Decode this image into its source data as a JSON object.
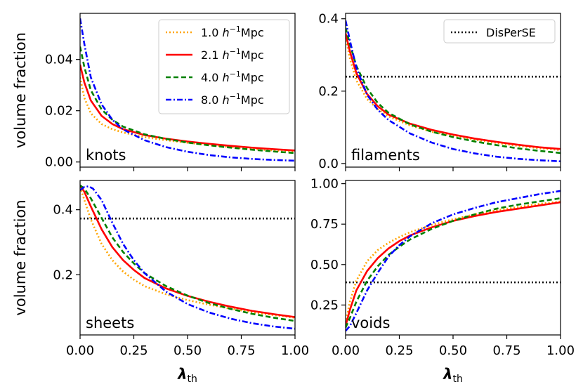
{
  "chart_data": [
    {
      "type": "line",
      "panel_label": "knots",
      "xlabel": "",
      "ylabel": "volume fraction",
      "xlim": [
        0,
        1
      ],
      "ylim": [
        -0.002,
        0.058
      ],
      "xticks": [
        0,
        0.25,
        0.5,
        0.75,
        1.0
      ],
      "xtick_labels": [],
      "yticks": [
        0,
        0.02,
        0.04
      ],
      "ytick_labels": [
        "0.00",
        "0.02",
        "0.04"
      ],
      "legend": {
        "placement": "top-right",
        "entries": [
          "1.0 h⁻¹Mpc",
          "2.1 h⁻¹Mpc",
          "4.0 h⁻¹Mpc",
          "8.0 h⁻¹Mpc"
        ]
      },
      "series": [
        {
          "name": "1.0 h⁻¹Mpc",
          "color": "#ffa500",
          "dash": "dotted",
          "x": [
            0,
            0.02,
            0.05,
            0.1,
            0.15,
            0.2,
            0.3,
            0.4,
            0.5,
            0.6,
            0.7,
            0.8,
            0.9,
            1.0
          ],
          "y": [
            0.033,
            0.025,
            0.019,
            0.0148,
            0.0128,
            0.0115,
            0.0097,
            0.0085,
            0.0075,
            0.0066,
            0.0058,
            0.0051,
            0.0045,
            0.004
          ]
        },
        {
          "name": "2.1 h⁻¹Mpc",
          "color": "#ff0000",
          "dash": "solid",
          "x": [
            0,
            0.02,
            0.05,
            0.1,
            0.15,
            0.2,
            0.3,
            0.4,
            0.5,
            0.6,
            0.7,
            0.8,
            0.9,
            1.0
          ],
          "y": [
            0.038,
            0.031,
            0.024,
            0.018,
            0.0148,
            0.0128,
            0.0105,
            0.0091,
            0.008,
            0.0071,
            0.0063,
            0.0056,
            0.005,
            0.0045
          ]
        },
        {
          "name": "4.0 h⁻¹Mpc",
          "color": "#008000",
          "dash": "dashed",
          "x": [
            0,
            0.02,
            0.05,
            0.1,
            0.15,
            0.2,
            0.3,
            0.4,
            0.5,
            0.6,
            0.7,
            0.8,
            0.9,
            1.0
          ],
          "y": [
            0.045,
            0.037,
            0.028,
            0.0205,
            0.0165,
            0.0138,
            0.0108,
            0.009,
            0.0076,
            0.0065,
            0.0056,
            0.0048,
            0.0041,
            0.0035
          ]
        },
        {
          "name": "8.0 h⁻¹Mpc",
          "color": "#0000ff",
          "dash": "dashdot",
          "x": [
            0,
            0.02,
            0.05,
            0.1,
            0.15,
            0.2,
            0.3,
            0.4,
            0.5,
            0.6,
            0.7,
            0.8,
            0.9,
            1.0
          ],
          "y": [
            0.056,
            0.046,
            0.033,
            0.0225,
            0.0165,
            0.0127,
            0.0085,
            0.0058,
            0.004,
            0.0027,
            0.0018,
            0.0012,
            0.0008,
            0.0005
          ]
        }
      ]
    },
    {
      "type": "line",
      "panel_label": "filaments",
      "xlabel": "",
      "ylabel": "",
      "xlim": [
        0,
        1
      ],
      "ylim": [
        -0.01,
        0.415
      ],
      "xticks": [
        0,
        0.25,
        0.5,
        0.75,
        1.0
      ],
      "xtick_labels": [],
      "yticks": [
        0,
        0.2,
        0.4
      ],
      "ytick_labels": [
        "0.0",
        "0.2",
        "0.4"
      ],
      "legend": {
        "placement": "top-right",
        "entries": [
          "DisPerSE"
        ]
      },
      "series": [
        {
          "name": "DisPerSE",
          "color": "#000000",
          "dash": "dotted",
          "x": [
            0,
            1
          ],
          "y": [
            0.24,
            0.24
          ]
        },
        {
          "name": "1.0 h⁻¹Mpc",
          "color": "#ffa500",
          "dash": "dotted",
          "x": [
            0,
            0.02,
            0.05,
            0.1,
            0.15,
            0.2,
            0.3,
            0.4,
            0.5,
            0.6,
            0.7,
            0.8,
            0.9,
            1.0
          ],
          "y": [
            0.35,
            0.29,
            0.23,
            0.178,
            0.15,
            0.13,
            0.105,
            0.088,
            0.076,
            0.066,
            0.057,
            0.049,
            0.042,
            0.037
          ]
        },
        {
          "name": "2.1 h⁻¹Mpc",
          "color": "#ff0000",
          "dash": "solid",
          "x": [
            0,
            0.02,
            0.05,
            0.1,
            0.15,
            0.2,
            0.3,
            0.4,
            0.5,
            0.6,
            0.7,
            0.8,
            0.9,
            1.0
          ],
          "y": [
            0.36,
            0.31,
            0.25,
            0.192,
            0.158,
            0.135,
            0.11,
            0.093,
            0.08,
            0.069,
            0.06,
            0.052,
            0.045,
            0.04
          ]
        },
        {
          "name": "4.0 h⁻¹Mpc",
          "color": "#008000",
          "dash": "dashed",
          "x": [
            0,
            0.02,
            0.05,
            0.1,
            0.15,
            0.2,
            0.3,
            0.4,
            0.5,
            0.6,
            0.7,
            0.8,
            0.9,
            1.0
          ],
          "y": [
            0.375,
            0.33,
            0.27,
            0.208,
            0.167,
            0.14,
            0.108,
            0.088,
            0.073,
            0.061,
            0.051,
            0.042,
            0.035,
            0.029
          ]
        },
        {
          "name": "8.0 h⁻¹Mpc",
          "color": "#0000ff",
          "dash": "dashdot",
          "x": [
            0,
            0.02,
            0.05,
            0.1,
            0.15,
            0.2,
            0.3,
            0.4,
            0.5,
            0.6,
            0.7,
            0.8,
            0.9,
            1.0
          ],
          "y": [
            0.395,
            0.34,
            0.265,
            0.19,
            0.148,
            0.12,
            0.083,
            0.058,
            0.04,
            0.028,
            0.019,
            0.013,
            0.009,
            0.006
          ]
        }
      ]
    },
    {
      "type": "line",
      "panel_label": "sheets",
      "xlabel": "λth",
      "ylabel": "volume fraction",
      "xlim": [
        0,
        1
      ],
      "ylim": [
        0.015,
        0.49
      ],
      "xticks": [
        0,
        0.25,
        0.5,
        0.75,
        1.0
      ],
      "xtick_labels": [
        "0.00",
        "0.25",
        "0.50",
        "0.75",
        "1.00"
      ],
      "yticks": [
        0.2,
        0.4
      ],
      "ytick_labels": [
        "0.2",
        "0.4"
      ],
      "series": [
        {
          "name": "DisPerSE",
          "color": "#000000",
          "dash": "dotted",
          "x": [
            0,
            1
          ],
          "y": [
            0.373,
            0.373
          ]
        },
        {
          "name": "1.0 h⁻¹Mpc",
          "color": "#ffa500",
          "dash": "dotted",
          "x": [
            0,
            0.02,
            0.05,
            0.1,
            0.15,
            0.2,
            0.25,
            0.3,
            0.4,
            0.5,
            0.6,
            0.7,
            0.8,
            0.9,
            1.0
          ],
          "y": [
            0.47,
            0.43,
            0.37,
            0.295,
            0.245,
            0.21,
            0.185,
            0.165,
            0.14,
            0.122,
            0.108,
            0.096,
            0.085,
            0.076,
            0.068
          ]
        },
        {
          "name": "2.1 h⁻¹Mpc",
          "color": "#ff0000",
          "dash": "solid",
          "x": [
            0,
            0.02,
            0.05,
            0.1,
            0.15,
            0.2,
            0.25,
            0.3,
            0.4,
            0.5,
            0.6,
            0.7,
            0.8,
            0.9,
            1.0
          ],
          "y": [
            0.475,
            0.455,
            0.41,
            0.34,
            0.285,
            0.245,
            0.215,
            0.19,
            0.158,
            0.135,
            0.117,
            0.102,
            0.089,
            0.079,
            0.07
          ]
        },
        {
          "name": "4.0 h⁻¹Mpc",
          "color": "#008000",
          "dash": "dashed",
          "x": [
            0,
            0.02,
            0.05,
            0.1,
            0.15,
            0.2,
            0.25,
            0.3,
            0.4,
            0.5,
            0.6,
            0.7,
            0.8,
            0.9,
            1.0
          ],
          "y": [
            0.475,
            0.465,
            0.435,
            0.375,
            0.315,
            0.27,
            0.235,
            0.205,
            0.165,
            0.136,
            0.113,
            0.095,
            0.08,
            0.068,
            0.058
          ]
        },
        {
          "name": "8.0 h⁻¹Mpc",
          "color": "#0000ff",
          "dash": "dashdot",
          "x": [
            0,
            0.02,
            0.04,
            0.06,
            0.1,
            0.15,
            0.2,
            0.25,
            0.3,
            0.4,
            0.5,
            0.6,
            0.7,
            0.8,
            0.9,
            1.0
          ],
          "y": [
            0.46,
            0.47,
            0.472,
            0.465,
            0.43,
            0.36,
            0.295,
            0.245,
            0.205,
            0.148,
            0.11,
            0.084,
            0.065,
            0.051,
            0.041,
            0.034
          ]
        }
      ]
    },
    {
      "type": "line",
      "panel_label": "voids",
      "xlabel": "λth",
      "ylabel": "",
      "xlim": [
        0,
        1
      ],
      "ylim": [
        0.065,
        1.02
      ],
      "xticks": [
        0,
        0.25,
        0.5,
        0.75,
        1.0
      ],
      "xtick_labels": [
        "0.00",
        "0.25",
        "0.50",
        "0.75",
        "1.00"
      ],
      "yticks": [
        0.25,
        0.5,
        0.75,
        1.0
      ],
      "ytick_labels": [
        "0.25",
        "0.50",
        "0.75",
        "1.00"
      ],
      "series": [
        {
          "name": "DisPerSE",
          "color": "#000000",
          "dash": "dotted",
          "x": [
            0,
            1
          ],
          "y": [
            0.39,
            0.39
          ]
        },
        {
          "name": "1.0 h⁻¹Mpc",
          "color": "#ffa500",
          "dash": "dotted",
          "x": [
            0,
            0.02,
            0.05,
            0.1,
            0.15,
            0.2,
            0.25,
            0.3,
            0.4,
            0.5,
            0.6,
            0.7,
            0.8,
            0.9,
            1.0
          ],
          "y": [
            0.14,
            0.27,
            0.4,
            0.52,
            0.59,
            0.635,
            0.67,
            0.7,
            0.745,
            0.78,
            0.81,
            0.835,
            0.855,
            0.875,
            0.89
          ]
        },
        {
          "name": "2.1 h⁻¹Mpc",
          "color": "#ff0000",
          "dash": "solid",
          "x": [
            0,
            0.02,
            0.05,
            0.1,
            0.15,
            0.2,
            0.25,
            0.3,
            0.4,
            0.5,
            0.6,
            0.7,
            0.8,
            0.9,
            1.0
          ],
          "y": [
            0.12,
            0.22,
            0.34,
            0.46,
            0.54,
            0.6,
            0.645,
            0.68,
            0.73,
            0.77,
            0.8,
            0.825,
            0.845,
            0.865,
            0.885
          ]
        },
        {
          "name": "4.0 h⁻¹Mpc",
          "color": "#008000",
          "dash": "dashed",
          "x": [
            0,
            0.02,
            0.05,
            0.1,
            0.15,
            0.2,
            0.25,
            0.3,
            0.4,
            0.5,
            0.6,
            0.7,
            0.8,
            0.9,
            1.0
          ],
          "y": [
            0.11,
            0.17,
            0.27,
            0.4,
            0.49,
            0.56,
            0.61,
            0.655,
            0.72,
            0.77,
            0.81,
            0.845,
            0.87,
            0.89,
            0.91
          ]
        },
        {
          "name": "8.0 h⁻¹Mpc",
          "color": "#0000ff",
          "dash": "dashdot",
          "x": [
            0,
            0.02,
            0.05,
            0.1,
            0.15,
            0.2,
            0.25,
            0.3,
            0.4,
            0.5,
            0.6,
            0.7,
            0.8,
            0.9,
            1.0
          ],
          "y": [
            0.09,
            0.12,
            0.2,
            0.34,
            0.45,
            0.55,
            0.62,
            0.675,
            0.755,
            0.81,
            0.85,
            0.885,
            0.91,
            0.935,
            0.955
          ]
        }
      ]
    }
  ]
}
